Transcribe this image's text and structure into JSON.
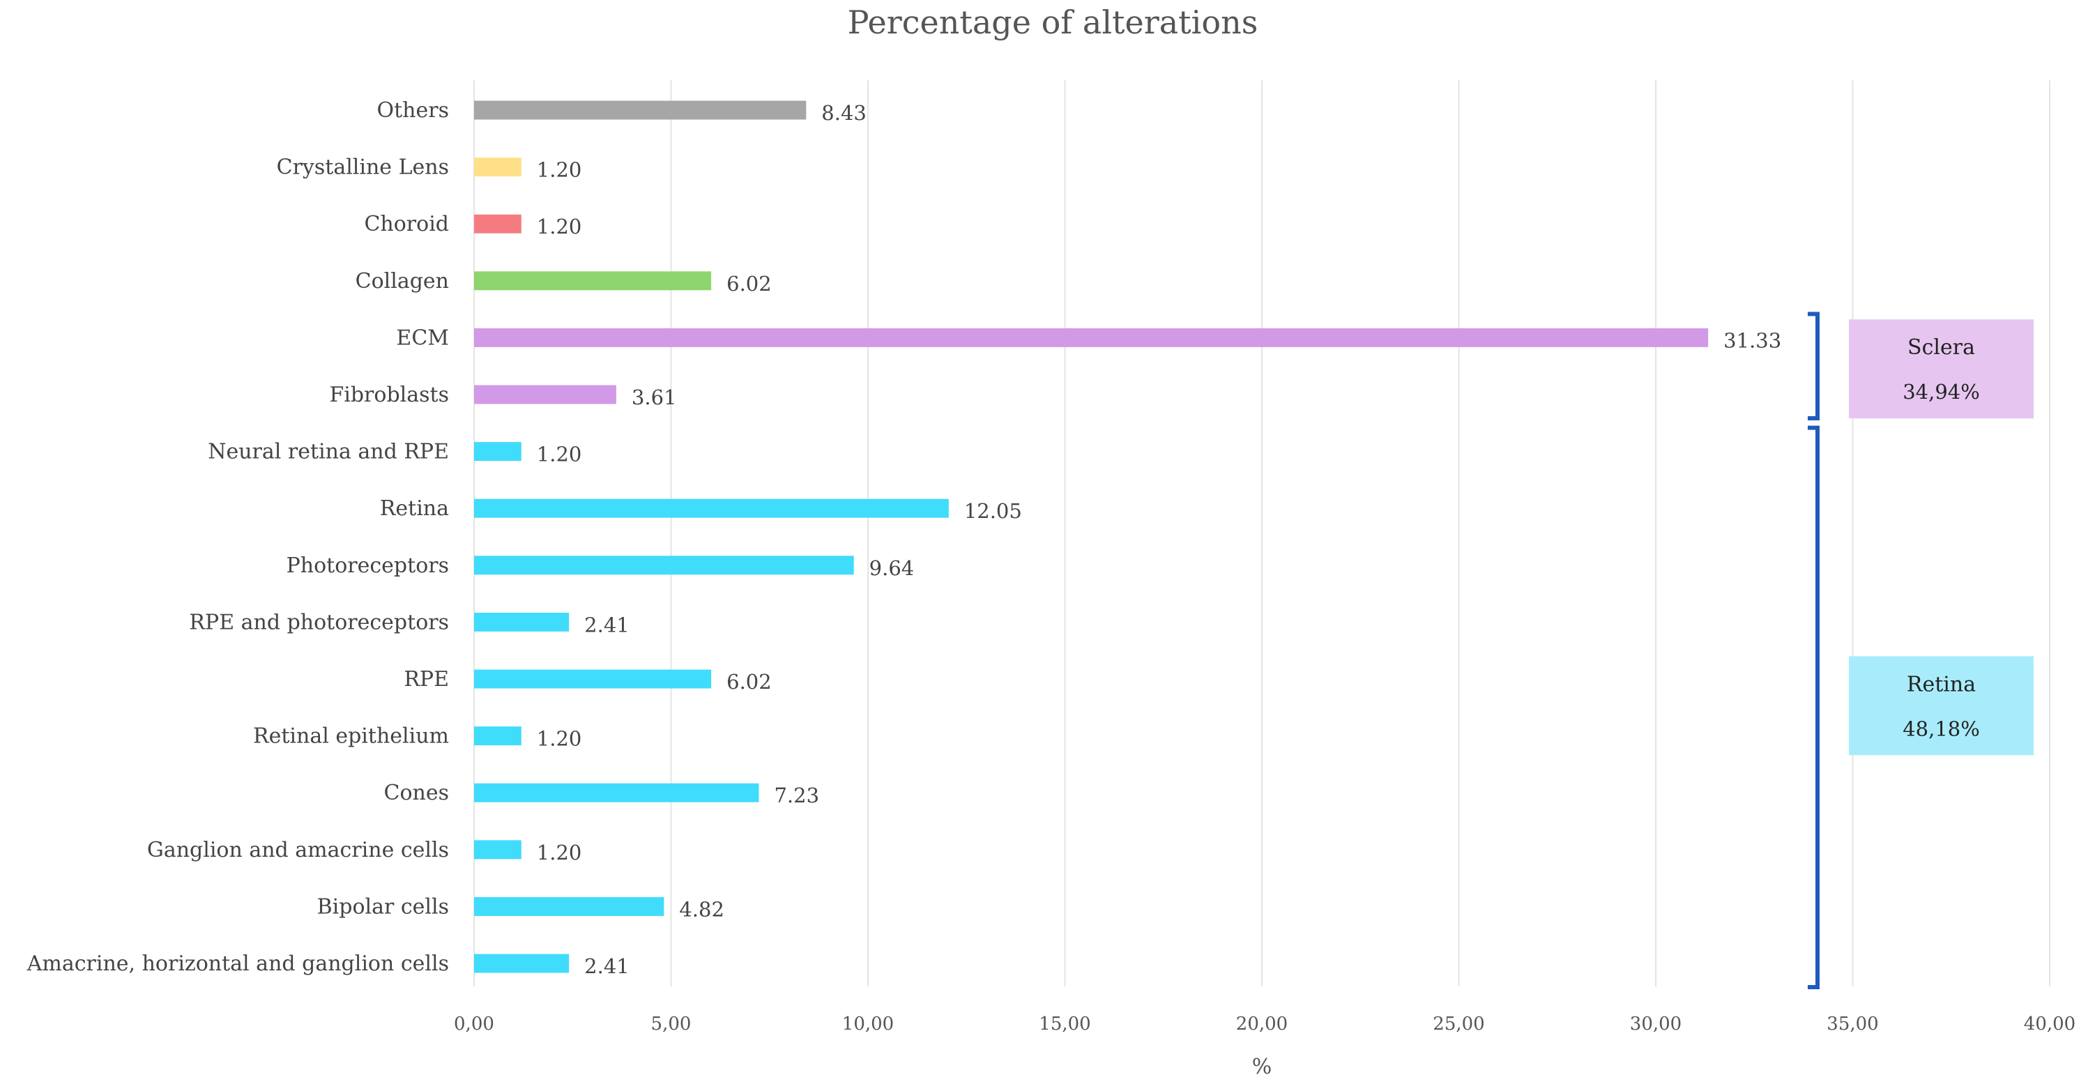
{
  "chart_data": {
    "type": "bar",
    "orientation": "horizontal",
    "title": "Percentage of alterations",
    "xlabel": "%",
    "ylabel": "",
    "xlim": [
      0,
      40
    ],
    "grid": true,
    "x_ticks": [
      "0,00",
      "5,00",
      "10,00",
      "15,00",
      "20,00",
      "25,00",
      "30,00",
      "35,00",
      "40,00"
    ],
    "categories": [
      "Others",
      "Crystalline Lens",
      "Choroid",
      "Collagen",
      "ECM",
      "Fibroblasts",
      "Neural retina and RPE",
      "Retina",
      "Photoreceptors",
      "RPE and photoreceptors",
      "RPE",
      "Retinal epithelium",
      "Cones",
      "Ganglion and amacrine cells",
      "Bipolar cells",
      "Amacrine, horizontal and ganglion cells"
    ],
    "values": [
      8.43,
      1.2,
      1.2,
      6.02,
      31.33,
      3.61,
      1.2,
      12.05,
      9.64,
      2.41,
      6.02,
      1.2,
      7.23,
      1.2,
      4.82,
      2.41
    ],
    "value_labels": [
      "8.43",
      "1.20",
      "1.20",
      "6.02",
      "31.33",
      "3.61",
      "1.20",
      "12.05",
      "9.64",
      "2.41",
      "6.02",
      "1.20",
      "7.23",
      "1.20",
      "4.82",
      "2.41"
    ],
    "bar_colors": [
      "#a6a6a6",
      "#ffe08a",
      "#f47c80",
      "#8ed46f",
      "#d29ae6",
      "#d29ae6",
      "#3fdcfb",
      "#3fdcfb",
      "#3fdcfb",
      "#3fdcfb",
      "#3fdcfb",
      "#3fdcfb",
      "#3fdcfb",
      "#3fdcfb",
      "#3fdcfb",
      "#3fdcfb"
    ],
    "groups": [
      {
        "name": "Sclera",
        "percent": "34,94%",
        "first_category": 4,
        "last_category": 5,
        "color": "#e6c6f0"
      },
      {
        "name": "Retina",
        "percent": "48,18%",
        "first_category": 6,
        "last_category": 15,
        "color": "#a8ecfb"
      }
    ],
    "bracket_color": "#1f5bbf",
    "grid_color": "#e4e4e4"
  }
}
